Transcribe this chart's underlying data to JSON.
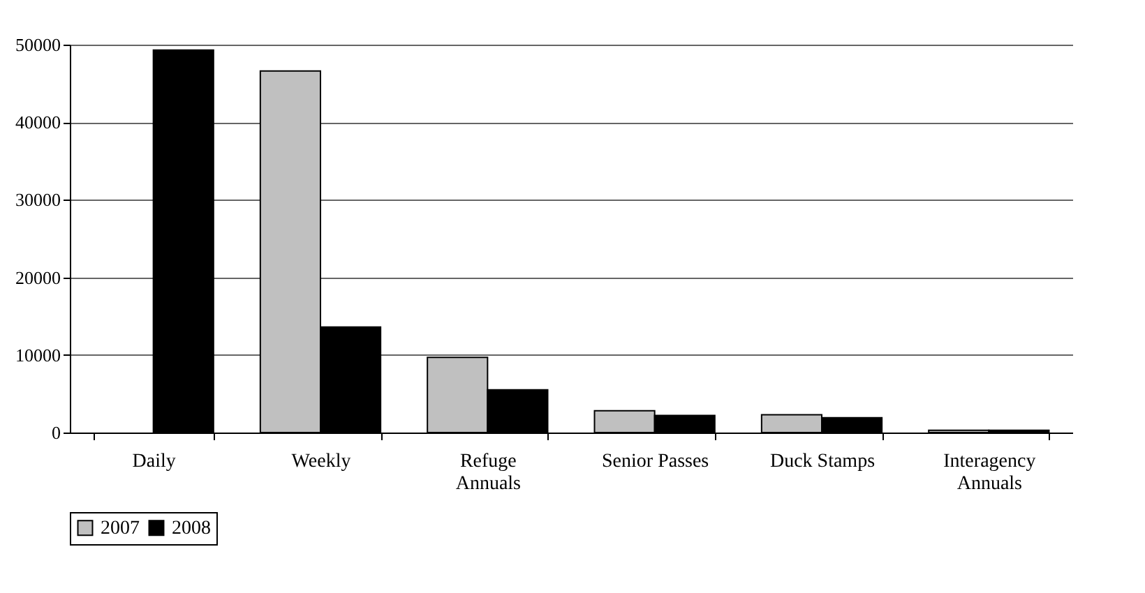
{
  "chart_data": {
    "type": "bar",
    "categories": [
      "Daily",
      "Weekly",
      "Refuge Annuals",
      "Senior Passes",
      "Duck Stamps",
      "Interagency Annuals"
    ],
    "series": [
      {
        "name": "2007",
        "color": "#c0c0c0",
        "values": [
          null,
          46600,
          9700,
          2800,
          2300,
          300
        ]
      },
      {
        "name": "2008",
        "color": "#000000",
        "values": [
          49300,
          13600,
          5500,
          2200,
          1900,
          300
        ]
      }
    ],
    "ylim": [
      0,
      50000
    ],
    "yticks": [
      0,
      10000,
      20000,
      30000,
      40000,
      50000
    ],
    "grid": "y",
    "legend": "bottom"
  }
}
